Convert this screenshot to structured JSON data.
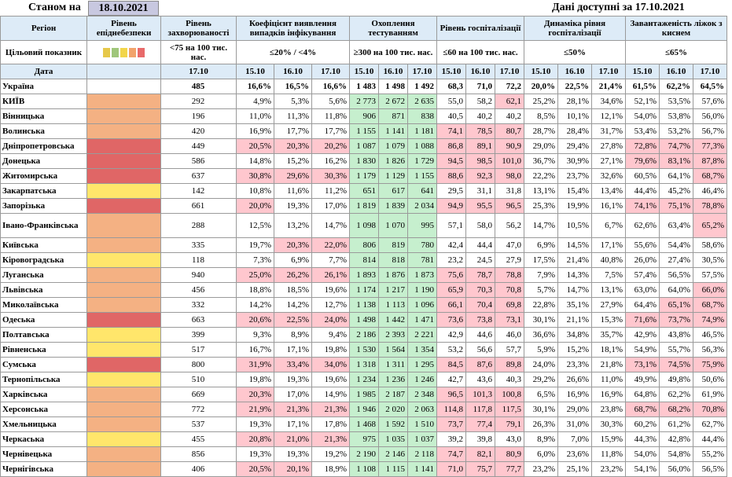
{
  "top": {
    "stanom_label": "Станом на",
    "stanom_date": "18.10.2021",
    "available_label": "Дані доступні за 17.10.2021"
  },
  "colors": {
    "orange": "#f4b183",
    "red": "#e06666",
    "yellow": "#ffe66b",
    "green_cell": "#c6efce",
    "red_cell": "#ffc7ce",
    "header_bg": "#ddebf7"
  },
  "legend_swatches": [
    "#e6c84a",
    "#9fc67a",
    "#f2d54a",
    "#f2a36b",
    "#e86a6a"
  ],
  "headers": {
    "region": "Регіон",
    "epi": "Рівень епіднебезпеки",
    "incidence": "Рівень захворюваності",
    "coef": "Коефіцієнт виявлення випадків інфікування",
    "testing": "Охоплення тестуванням",
    "hosp": "Рівень госпіталізації",
    "dyn": "Динаміка рівня госпіталізації",
    "beds": "Завантаженість ліжок з киснем",
    "target_label": "Цільовий показник",
    "date_label": "Дата",
    "incidence_target": "<75 на 100 тис. нас.",
    "coef_target": "≤20% / <4%",
    "testing_target": "≥300 на 100 тис. нас.",
    "hosp_target": "≤60 на 100 тис. нас.",
    "dyn_target": "≤50%",
    "beds_target": "≤65%",
    "incidence_date": "17.10",
    "d1": "15.10",
    "d2": "16.10",
    "d3": "17.10"
  },
  "ukraine": {
    "name": "Україна",
    "inc": "485",
    "coef": [
      "16,6%",
      "16,5%",
      "16,6%"
    ],
    "test": [
      "1 483",
      "1 498",
      "1 492"
    ],
    "hosp": [
      "68,3",
      "71,0",
      "72,2"
    ],
    "dyn": [
      "20,0%",
      "22,5%",
      "21,4%"
    ],
    "beds": [
      "61,5%",
      "62,2%",
      "64,5%"
    ]
  },
  "rows": [
    {
      "name": "КИЇВ",
      "lvl": "orange",
      "inc": "292",
      "coef": [
        "4,9%",
        "5,3%",
        "5,6%"
      ],
      "test": [
        "2 773",
        "2 672",
        "2 635"
      ],
      "hosp": [
        "55,0",
        "58,2",
        "62,1"
      ],
      "dyn": [
        "25,2%",
        "28,1%",
        "34,6%"
      ],
      "beds": [
        "52,1%",
        "53,5%",
        "57,6%"
      ],
      "cr": [
        0,
        0,
        0
      ],
      "hr": [
        0,
        0,
        1
      ],
      "br": [
        0,
        0,
        0
      ]
    },
    {
      "name": "Вінницька",
      "lvl": "orange",
      "inc": "196",
      "coef": [
        "11,0%",
        "11,3%",
        "11,8%"
      ],
      "test": [
        "906",
        "871",
        "838"
      ],
      "hosp": [
        "40,5",
        "40,2",
        "40,2"
      ],
      "dyn": [
        "8,5%",
        "10,1%",
        "12,1%"
      ],
      "beds": [
        "54,0%",
        "53,8%",
        "56,0%"
      ],
      "cr": [
        0,
        0,
        0
      ],
      "hr": [
        0,
        0,
        0
      ],
      "br": [
        0,
        0,
        0
      ]
    },
    {
      "name": "Волинська",
      "lvl": "orange",
      "inc": "420",
      "coef": [
        "16,9%",
        "17,7%",
        "17,7%"
      ],
      "test": [
        "1 155",
        "1 141",
        "1 181"
      ],
      "hosp": [
        "74,1",
        "78,5",
        "80,7"
      ],
      "dyn": [
        "28,7%",
        "28,4%",
        "31,7%"
      ],
      "beds": [
        "53,4%",
        "53,2%",
        "56,7%"
      ],
      "cr": [
        0,
        0,
        0
      ],
      "hr": [
        1,
        1,
        1
      ],
      "br": [
        0,
        0,
        0
      ]
    },
    {
      "name": "Дніпропетровська",
      "lvl": "red",
      "inc": "449",
      "coef": [
        "20,5%",
        "20,3%",
        "20,2%"
      ],
      "test": [
        "1 087",
        "1 079",
        "1 088"
      ],
      "hosp": [
        "86,8",
        "89,1",
        "90,9"
      ],
      "dyn": [
        "29,0%",
        "29,4%",
        "27,8%"
      ],
      "beds": [
        "72,8%",
        "74,7%",
        "77,3%"
      ],
      "cr": [
        1,
        1,
        1
      ],
      "hr": [
        1,
        1,
        1
      ],
      "br": [
        1,
        1,
        1
      ]
    },
    {
      "name": "Донецька",
      "lvl": "red",
      "inc": "586",
      "coef": [
        "14,8%",
        "15,2%",
        "16,2%"
      ],
      "test": [
        "1 830",
        "1 826",
        "1 729"
      ],
      "hosp": [
        "94,5",
        "98,5",
        "101,0"
      ],
      "dyn": [
        "36,7%",
        "30,9%",
        "27,1%"
      ],
      "beds": [
        "79,6%",
        "83,1%",
        "87,8%"
      ],
      "cr": [
        0,
        0,
        0
      ],
      "hr": [
        1,
        1,
        1
      ],
      "br": [
        1,
        1,
        1
      ]
    },
    {
      "name": "Житомирська",
      "lvl": "red",
      "inc": "637",
      "coef": [
        "30,8%",
        "29,6%",
        "30,3%"
      ],
      "test": [
        "1 179",
        "1 129",
        "1 155"
      ],
      "hosp": [
        "88,6",
        "92,3",
        "98,0"
      ],
      "dyn": [
        "22,2%",
        "23,7%",
        "32,6%"
      ],
      "beds": [
        "60,5%",
        "64,1%",
        "68,7%"
      ],
      "cr": [
        1,
        1,
        1
      ],
      "hr": [
        1,
        1,
        1
      ],
      "br": [
        0,
        0,
        1
      ]
    },
    {
      "name": "Закарпатська",
      "lvl": "yellow",
      "inc": "142",
      "coef": [
        "10,8%",
        "11,6%",
        "11,2%"
      ],
      "test": [
        "651",
        "617",
        "641"
      ],
      "hosp": [
        "29,5",
        "31,1",
        "31,8"
      ],
      "dyn": [
        "13,1%",
        "15,4%",
        "13,4%"
      ],
      "beds": [
        "44,4%",
        "45,2%",
        "46,4%"
      ],
      "cr": [
        0,
        0,
        0
      ],
      "hr": [
        0,
        0,
        0
      ],
      "br": [
        0,
        0,
        0
      ]
    },
    {
      "name": "Запорізька",
      "lvl": "red",
      "inc": "661",
      "coef": [
        "20,0%",
        "19,3%",
        "17,0%"
      ],
      "test": [
        "1 819",
        "1 839",
        "2 034"
      ],
      "hosp": [
        "94,9",
        "95,5",
        "96,5"
      ],
      "dyn": [
        "25,3%",
        "19,9%",
        "16,1%"
      ],
      "beds": [
        "74,1%",
        "75,1%",
        "78,8%"
      ],
      "cr": [
        1,
        0,
        0
      ],
      "hr": [
        1,
        1,
        1
      ],
      "br": [
        1,
        1,
        1
      ]
    },
    {
      "name": "Івано-Франківська",
      "lvl": "orange",
      "inc": "288",
      "coef": [
        "12,5%",
        "13,2%",
        "14,7%"
      ],
      "test": [
        "1 098",
        "1 070",
        "995"
      ],
      "hosp": [
        "57,1",
        "58,0",
        "56,2"
      ],
      "dyn": [
        "14,7%",
        "10,5%",
        "6,7%"
      ],
      "beds": [
        "62,6%",
        "63,4%",
        "65,2%"
      ],
      "cr": [
        0,
        0,
        0
      ],
      "hr": [
        0,
        0,
        0
      ],
      "br": [
        0,
        0,
        1
      ],
      "tall": true
    },
    {
      "name": "Київська",
      "lvl": "orange",
      "inc": "335",
      "coef": [
        "19,7%",
        "20,3%",
        "22,0%"
      ],
      "test": [
        "806",
        "819",
        "780"
      ],
      "hosp": [
        "42,4",
        "44,4",
        "47,0"
      ],
      "dyn": [
        "6,9%",
        "14,5%",
        "17,1%"
      ],
      "beds": [
        "55,6%",
        "54,4%",
        "58,6%"
      ],
      "cr": [
        0,
        1,
        1
      ],
      "hr": [
        0,
        0,
        0
      ],
      "br": [
        0,
        0,
        0
      ]
    },
    {
      "name": "Кіровоградська",
      "lvl": "yellow",
      "inc": "118",
      "coef": [
        "7,3%",
        "6,9%",
        "7,7%"
      ],
      "test": [
        "814",
        "818",
        "781"
      ],
      "hosp": [
        "23,2",
        "24,5",
        "27,9"
      ],
      "dyn": [
        "17,5%",
        "21,4%",
        "40,8%"
      ],
      "beds": [
        "26,0%",
        "27,4%",
        "30,5%"
      ],
      "cr": [
        0,
        0,
        0
      ],
      "hr": [
        0,
        0,
        0
      ],
      "br": [
        0,
        0,
        0
      ]
    },
    {
      "name": "Луганська",
      "lvl": "orange",
      "inc": "940",
      "coef": [
        "25,0%",
        "26,2%",
        "26,1%"
      ],
      "test": [
        "1 893",
        "1 876",
        "1 873"
      ],
      "hosp": [
        "75,6",
        "78,7",
        "78,8"
      ],
      "dyn": [
        "7,9%",
        "14,3%",
        "7,5%"
      ],
      "beds": [
        "57,4%",
        "56,5%",
        "57,5%"
      ],
      "cr": [
        1,
        1,
        1
      ],
      "hr": [
        1,
        1,
        1
      ],
      "br": [
        0,
        0,
        0
      ]
    },
    {
      "name": "Львівська",
      "lvl": "orange",
      "inc": "456",
      "coef": [
        "18,8%",
        "18,5%",
        "19,6%"
      ],
      "test": [
        "1 174",
        "1 217",
        "1 190"
      ],
      "hosp": [
        "65,9",
        "70,3",
        "70,8"
      ],
      "dyn": [
        "5,7%",
        "14,7%",
        "13,1%"
      ],
      "beds": [
        "63,0%",
        "64,0%",
        "66,0%"
      ],
      "cr": [
        0,
        0,
        0
      ],
      "hr": [
        1,
        1,
        1
      ],
      "br": [
        0,
        0,
        1
      ]
    },
    {
      "name": "Миколаївська",
      "lvl": "orange",
      "inc": "332",
      "coef": [
        "14,2%",
        "14,2%",
        "12,7%"
      ],
      "test": [
        "1 138",
        "1 113",
        "1 096"
      ],
      "hosp": [
        "66,1",
        "70,4",
        "69,8"
      ],
      "dyn": [
        "22,8%",
        "35,1%",
        "27,9%"
      ],
      "beds": [
        "64,4%",
        "65,1%",
        "68,7%"
      ],
      "cr": [
        0,
        0,
        0
      ],
      "hr": [
        1,
        1,
        1
      ],
      "br": [
        0,
        1,
        1
      ]
    },
    {
      "name": "Одеська",
      "lvl": "red",
      "inc": "663",
      "coef": [
        "20,6%",
        "22,5%",
        "24,0%"
      ],
      "test": [
        "1 498",
        "1 442",
        "1 471"
      ],
      "hosp": [
        "73,6",
        "73,8",
        "73,1"
      ],
      "dyn": [
        "30,1%",
        "21,1%",
        "15,3%"
      ],
      "beds": [
        "71,6%",
        "73,7%",
        "74,9%"
      ],
      "cr": [
        1,
        1,
        1
      ],
      "hr": [
        1,
        1,
        1
      ],
      "br": [
        1,
        1,
        1
      ]
    },
    {
      "name": "Полтавська",
      "lvl": "yellow",
      "inc": "399",
      "coef": [
        "9,3%",
        "8,9%",
        "9,4%"
      ],
      "test": [
        "2 186",
        "2 393",
        "2 221"
      ],
      "hosp": [
        "42,9",
        "44,6",
        "46,0"
      ],
      "dyn": [
        "36,6%",
        "34,8%",
        "35,7%"
      ],
      "beds": [
        "42,9%",
        "43,8%",
        "46,5%"
      ],
      "cr": [
        0,
        0,
        0
      ],
      "hr": [
        0,
        0,
        0
      ],
      "br": [
        0,
        0,
        0
      ]
    },
    {
      "name": "Рівненська",
      "lvl": "yellow",
      "inc": "517",
      "coef": [
        "16,7%",
        "17,1%",
        "19,8%"
      ],
      "test": [
        "1 530",
        "1 564",
        "1 354"
      ],
      "hosp": [
        "53,2",
        "56,6",
        "57,7"
      ],
      "dyn": [
        "5,9%",
        "15,2%",
        "18,1%"
      ],
      "beds": [
        "54,9%",
        "55,7%",
        "56,3%"
      ],
      "cr": [
        0,
        0,
        0
      ],
      "hr": [
        0,
        0,
        0
      ],
      "br": [
        0,
        0,
        0
      ]
    },
    {
      "name": "Сумська",
      "lvl": "red",
      "inc": "800",
      "coef": [
        "31,9%",
        "33,4%",
        "34,0%"
      ],
      "test": [
        "1 318",
        "1 311",
        "1 295"
      ],
      "hosp": [
        "84,5",
        "87,6",
        "89,8"
      ],
      "dyn": [
        "24,0%",
        "23,3%",
        "21,8%"
      ],
      "beds": [
        "73,1%",
        "74,5%",
        "75,9%"
      ],
      "cr": [
        1,
        1,
        1
      ],
      "hr": [
        1,
        1,
        1
      ],
      "br": [
        1,
        1,
        1
      ]
    },
    {
      "name": "Тернопільська",
      "lvl": "yellow",
      "inc": "510",
      "coef": [
        "19,8%",
        "19,3%",
        "19,6%"
      ],
      "test": [
        "1 234",
        "1 236",
        "1 246"
      ],
      "hosp": [
        "42,7",
        "43,6",
        "40,3"
      ],
      "dyn": [
        "29,2%",
        "26,6%",
        "11,0%"
      ],
      "beds": [
        "49,9%",
        "49,8%",
        "50,6%"
      ],
      "cr": [
        0,
        0,
        0
      ],
      "hr": [
        0,
        0,
        0
      ],
      "br": [
        0,
        0,
        0
      ]
    },
    {
      "name": "Харківська",
      "lvl": "orange",
      "inc": "669",
      "coef": [
        "20,3%",
        "17,0%",
        "14,9%"
      ],
      "test": [
        "1 985",
        "2 187",
        "2 348"
      ],
      "hosp": [
        "96,5",
        "101,3",
        "100,8"
      ],
      "dyn": [
        "6,5%",
        "16,9%",
        "16,9%"
      ],
      "beds": [
        "64,8%",
        "62,2%",
        "61,9%"
      ],
      "cr": [
        1,
        0,
        0
      ],
      "hr": [
        1,
        1,
        1
      ],
      "br": [
        0,
        0,
        0
      ]
    },
    {
      "name": "Херсонська",
      "lvl": "orange",
      "inc": "772",
      "coef": [
        "21,9%",
        "21,3%",
        "21,3%"
      ],
      "test": [
        "1 946",
        "2 020",
        "2 063"
      ],
      "hosp": [
        "114,8",
        "117,8",
        "117,5"
      ],
      "dyn": [
        "30,1%",
        "29,0%",
        "23,8%"
      ],
      "beds": [
        "68,7%",
        "68,2%",
        "70,8%"
      ],
      "cr": [
        1,
        1,
        1
      ],
      "hr": [
        1,
        1,
        1
      ],
      "br": [
        1,
        1,
        1
      ]
    },
    {
      "name": "Хмельницька",
      "lvl": "orange",
      "inc": "537",
      "coef": [
        "19,3%",
        "17,1%",
        "17,8%"
      ],
      "test": [
        "1 468",
        "1 592",
        "1 510"
      ],
      "hosp": [
        "73,7",
        "77,4",
        "79,1"
      ],
      "dyn": [
        "26,3%",
        "31,0%",
        "30,3%"
      ],
      "beds": [
        "60,2%",
        "61,2%",
        "62,7%"
      ],
      "cr": [
        0,
        0,
        0
      ],
      "hr": [
        1,
        1,
        1
      ],
      "br": [
        0,
        0,
        0
      ]
    },
    {
      "name": "Черкаська",
      "lvl": "yellow",
      "inc": "455",
      "coef": [
        "20,8%",
        "21,0%",
        "21,3%"
      ],
      "test": [
        "975",
        "1 035",
        "1 037"
      ],
      "hosp": [
        "39,2",
        "39,8",
        "43,0"
      ],
      "dyn": [
        "8,9%",
        "7,0%",
        "15,9%"
      ],
      "beds": [
        "44,3%",
        "42,8%",
        "44,4%"
      ],
      "cr": [
        1,
        1,
        1
      ],
      "hr": [
        0,
        0,
        0
      ],
      "br": [
        0,
        0,
        0
      ]
    },
    {
      "name": "Чернівецька",
      "lvl": "orange",
      "inc": "856",
      "coef": [
        "19,3%",
        "19,3%",
        "19,2%"
      ],
      "test": [
        "2 190",
        "2 146",
        "2 118"
      ],
      "hosp": [
        "74,7",
        "82,1",
        "80,9"
      ],
      "dyn": [
        "6,0%",
        "23,6%",
        "11,8%"
      ],
      "beds": [
        "54,0%",
        "54,8%",
        "55,2%"
      ],
      "cr": [
        0,
        0,
        0
      ],
      "hr": [
        1,
        1,
        1
      ],
      "br": [
        0,
        0,
        0
      ]
    },
    {
      "name": "Чернігівська",
      "lvl": "orange",
      "inc": "406",
      "coef": [
        "20,5%",
        "20,1%",
        "18,9%"
      ],
      "test": [
        "1 108",
        "1 115",
        "1 141"
      ],
      "hosp": [
        "71,0",
        "75,7",
        "77,7"
      ],
      "dyn": [
        "23,2%",
        "25,1%",
        "23,2%"
      ],
      "beds": [
        "54,1%",
        "56,0%",
        "56,5%"
      ],
      "cr": [
        1,
        1,
        0
      ],
      "hr": [
        1,
        1,
        1
      ],
      "br": [
        0,
        0,
        0
      ]
    }
  ]
}
